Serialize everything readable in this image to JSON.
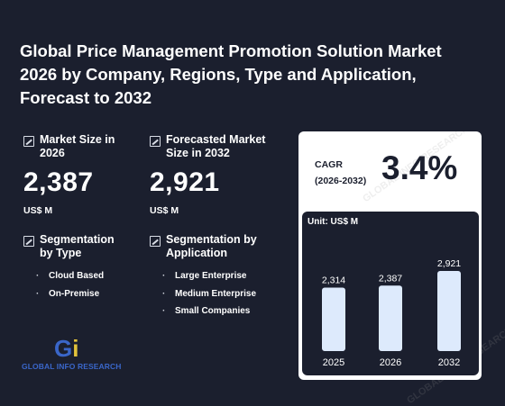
{
  "title": "Global Price Management Promotion Solution Market 2026 by Company, Regions, Type and Application, Forecast to 2032",
  "market_size": {
    "label": "Market Size in 2026",
    "value": "2,387",
    "unit": "US$ M"
  },
  "forecast_size": {
    "label": "Forecasted Market Size in 2032",
    "value": "2,921",
    "unit": "US$ M"
  },
  "segmentation_type": {
    "label": "Segmentation by Type",
    "items": [
      "Cloud Based",
      "On-Premise"
    ]
  },
  "segmentation_application": {
    "label": "Segmentation by Application",
    "items": [
      "Large Enterprise",
      "Medium Enterprise",
      "Small Companies"
    ]
  },
  "cagr": {
    "label_line1": "CAGR",
    "label_line2": "(2026-2032)",
    "value": "3.4%"
  },
  "logo": {
    "mark_g": "G",
    "mark_i": "i",
    "name": "GLOBAL INFO RESEARCH"
  },
  "watermark": "GLOBAL INFO RESEARCH",
  "chart_data": {
    "type": "bar",
    "unit_label": "Unit: US$ M",
    "categories": [
      "2025",
      "2026",
      "2032"
    ],
    "values": [
      2314,
      2387,
      2921
    ],
    "value_labels": [
      "2,314",
      "2,387",
      "2,921"
    ],
    "bar_color": "#ddeafc"
  }
}
